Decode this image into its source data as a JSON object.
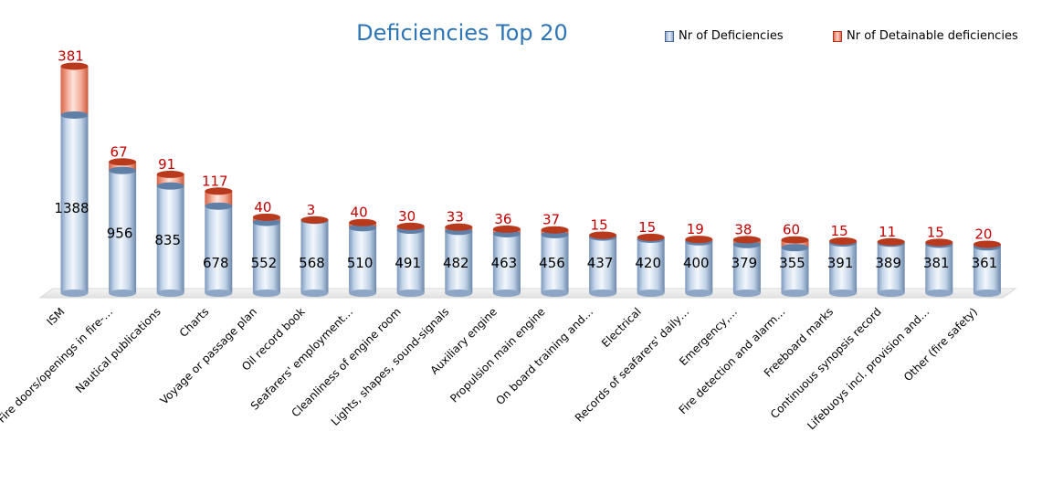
{
  "chart_data": {
    "type": "bar",
    "title": "Deficiencies Top 20",
    "categories": [
      "ISM",
      "Fire doors/openings in fire-…",
      "Nautical publications",
      "Charts",
      "Voyage or passage plan",
      "Oil record book",
      "Seafarers' employment…",
      "Cleanliness of engine room",
      "Lights, shapes, sound-signals",
      "Auxiliary engine",
      "Propulsion main engine",
      "On board training and…",
      "Electrical",
      "Records of seafarers' daily…",
      "Emergency,…",
      "Fire detection and alarm…",
      "Freeboard marks",
      "Continuous synopsis record",
      "Lifebuoys incl. provision and…",
      "Other (fire safety)"
    ],
    "series": [
      {
        "name": "Nr of Deficiencies",
        "values": [
          1388,
          956,
          835,
          678,
          552,
          568,
          510,
          491,
          482,
          463,
          456,
          437,
          420,
          400,
          379,
          355,
          391,
          389,
          381,
          361
        ]
      },
      {
        "name": "Nr of Detainable deficiencies",
        "values": [
          381,
          67,
          91,
          117,
          40,
          3,
          40,
          30,
          33,
          36,
          37,
          15,
          15,
          19,
          38,
          60,
          15,
          11,
          15,
          20
        ]
      }
    ],
    "stacked": true,
    "legend_position": "top-right",
    "grid": false,
    "colors": {
      "deficiencies": "#bcd3e8",
      "detainable": "#f1a08b",
      "detainable_label": "#c00000",
      "title": "#2e75b6"
    }
  }
}
